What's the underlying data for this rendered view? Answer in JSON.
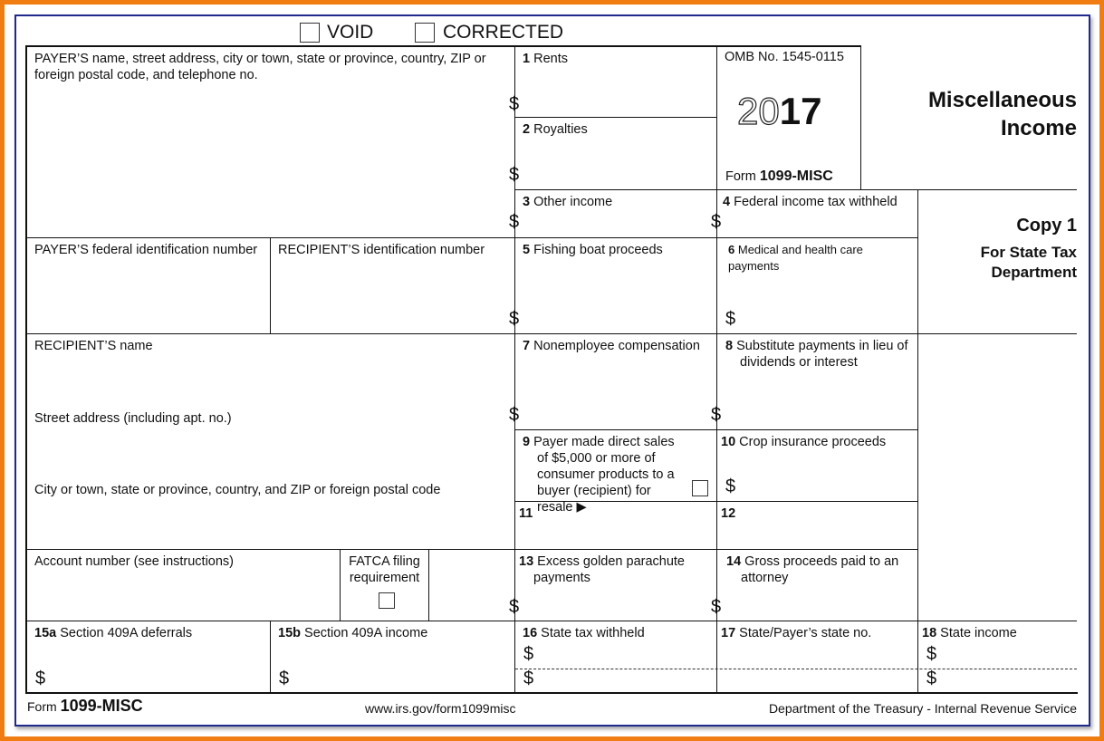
{
  "header": {
    "void": "VOID",
    "corrected": "CORRECTED"
  },
  "payer": {
    "name_label": "PAYER’S name, street address, city or town, state or province, country, ZIP or foreign postal code, and telephone no.",
    "fed_id": "PAYER’S federal identification number",
    "recipient_id": "RECIPIENT’S identification number"
  },
  "recipient": {
    "name": "RECIPIENT’S name",
    "street": "Street address (including apt. no.)",
    "city": "City or town, state or province, country, and ZIP or foreign postal code"
  },
  "account": {
    "label": "Account number (see instructions)",
    "fatca": "FATCA filing requirement"
  },
  "boxes": {
    "b1": {
      "num": "1",
      "label": "Rents"
    },
    "b2": {
      "num": "2",
      "label": "Royalties"
    },
    "b3": {
      "num": "3",
      "label": "Other income"
    },
    "b4": {
      "num": "4",
      "label": "Federal income tax withheld"
    },
    "b5": {
      "num": "5",
      "label": "Fishing boat proceeds"
    },
    "b6": {
      "num": "6",
      "label": "Medical and health care payments"
    },
    "b7": {
      "num": "7",
      "label": "Nonemployee compensation"
    },
    "b8": {
      "num": "8",
      "label": "Substitute payments in lieu of dividends or interest"
    },
    "b9": {
      "num": "9",
      "label": "Payer made direct sales of $5,000 or more of consumer products to a buyer (recipient) for resale ▶"
    },
    "b10": {
      "num": "10",
      "label": "Crop insurance proceeds"
    },
    "b11": {
      "num": "11",
      "label": ""
    },
    "b12": {
      "num": "12",
      "label": ""
    },
    "b13": {
      "num": "13",
      "label": "Excess golden parachute payments"
    },
    "b14": {
      "num": "14",
      "label": "Gross proceeds paid to an attorney"
    },
    "b15a": {
      "num": "15a",
      "label": "Section 409A deferrals"
    },
    "b15b": {
      "num": "15b",
      "label": "Section 409A income"
    },
    "b16": {
      "num": "16",
      "label": "State tax withheld"
    },
    "b17": {
      "num": "17",
      "label": "State/Payer’s state no."
    },
    "b18": {
      "num": "18",
      "label": "State income"
    }
  },
  "dollar": "$",
  "omb": {
    "number": "OMB No. 1545-0115",
    "year_outline": "20",
    "year_bold": "17",
    "form_prefix": "Form",
    "form_name": "1099-MISC"
  },
  "title": {
    "line1": "Miscellaneous",
    "line2": "Income"
  },
  "copy": {
    "title": "Copy 1",
    "sub1": "For State Tax",
    "sub2": "Department"
  },
  "footer": {
    "form_prefix": "Form",
    "form_name": "1099-MISC",
    "url": "www.irs.gov/form1099misc",
    "dept": "Department of the Treasury - Internal Revenue Service"
  },
  "colors": {
    "outer_frame": "#f07d12",
    "inner_frame": "#1f2a8c"
  }
}
